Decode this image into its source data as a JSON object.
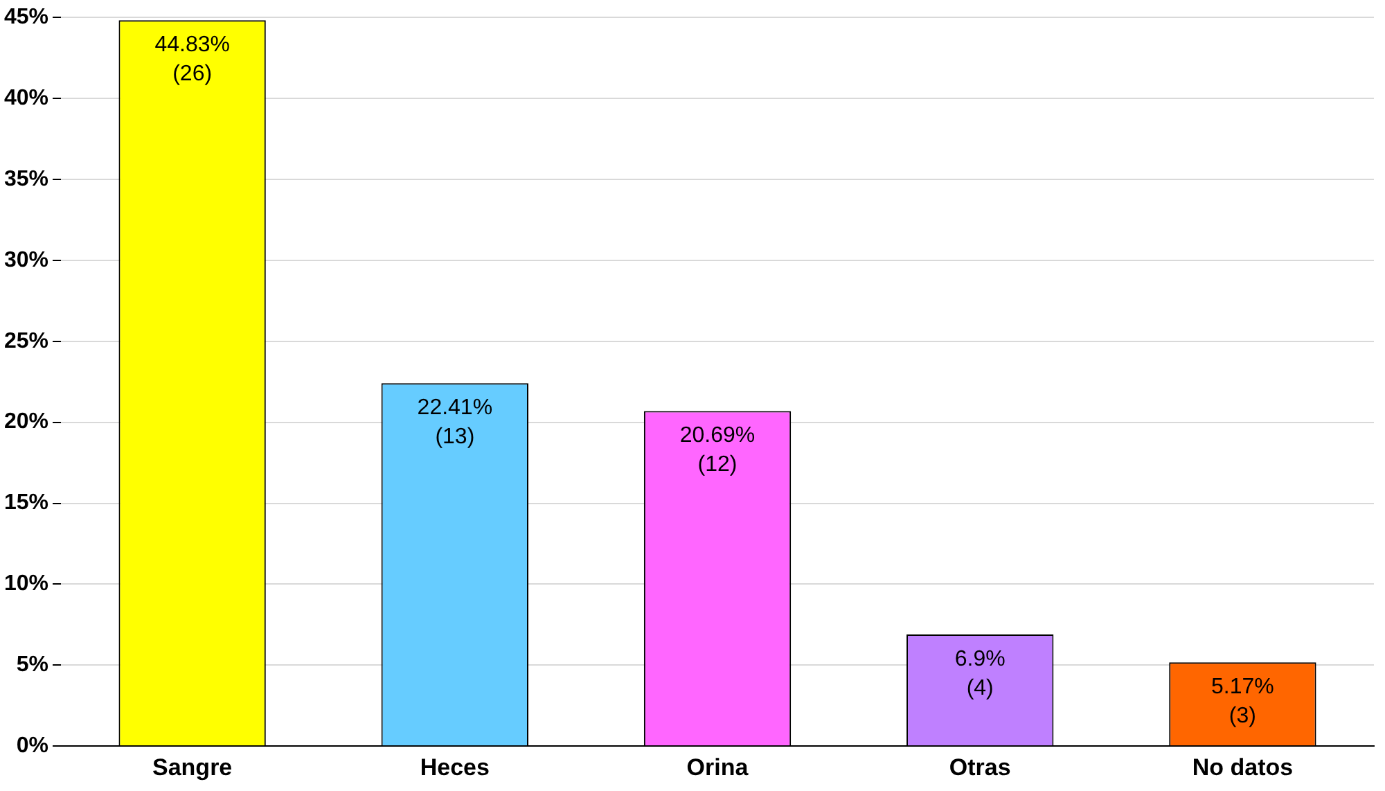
{
  "chart_data": {
    "type": "bar",
    "categories": [
      "Sangre",
      "Heces",
      "Orina",
      "Otras",
      "No datos"
    ],
    "values": [
      44.83,
      22.41,
      20.69,
      6.9,
      5.17
    ],
    "colors": [
      "#ffff00",
      "#66ccff",
      "#ff66ff",
      "#bf80ff",
      "#ff6600"
    ],
    "value_labels": [
      "44.83%\n(26)",
      "22.41%\n(13)",
      "20.69%\n(12)",
      "6.9%\n(4)",
      "5.17%\n(3)"
    ],
    "ylim": [
      0,
      45
    ],
    "yticks": [
      {
        "value": 0,
        "label": "0%"
      },
      {
        "value": 5,
        "label": "5%"
      },
      {
        "value": 10,
        "label": "10%"
      },
      {
        "value": 15,
        "label": "15%"
      },
      {
        "value": 20,
        "label": "20%"
      },
      {
        "value": 25,
        "label": "25%"
      },
      {
        "value": 30,
        "label": "30%"
      },
      {
        "value": 35,
        "label": "35%"
      },
      {
        "value": 40,
        "label": "40%"
      },
      {
        "value": 45,
        "label": "45%"
      }
    ],
    "grid": "y",
    "legend": false
  }
}
